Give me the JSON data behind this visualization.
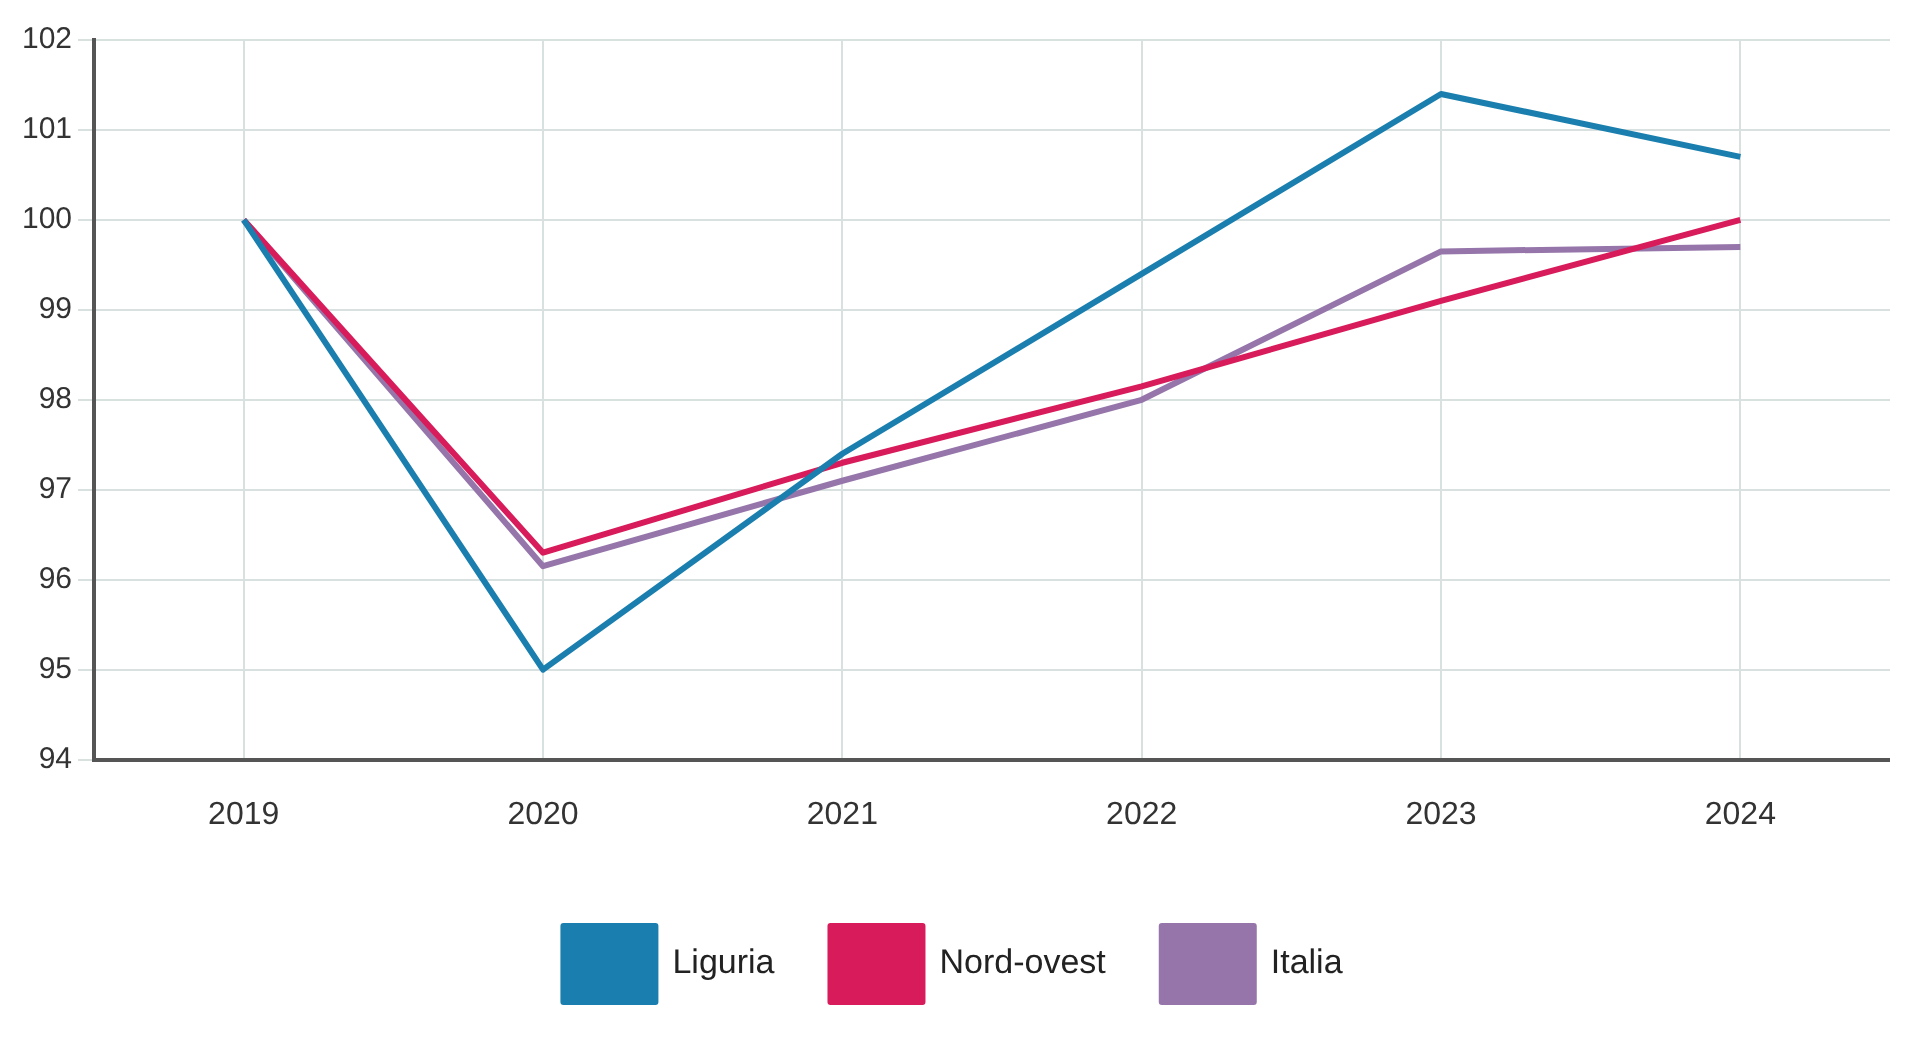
{
  "chart_data": {
    "type": "line",
    "categories": [
      "2019",
      "2020",
      "2021",
      "2022",
      "2023",
      "2024"
    ],
    "series": [
      {
        "name": "Liguria",
        "color": "#1a7fae",
        "values": [
          100,
          95.0,
          97.4,
          99.4,
          101.4,
          100.7
        ]
      },
      {
        "name": "Nord-ovest",
        "color": "#d81b5a",
        "values": [
          100,
          96.3,
          97.3,
          98.15,
          99.1,
          100
        ]
      },
      {
        "name": "Italia",
        "color": "#9575aa",
        "values": [
          100,
          96.15,
          97.1,
          98.0,
          99.65,
          99.7
        ]
      }
    ],
    "ylim": [
      94,
      102
    ],
    "yticks": [
      94,
      95,
      96,
      97,
      98,
      99,
      100,
      101,
      102
    ],
    "grid": true,
    "legend": "bottom",
    "marker": "none",
    "line_style": "solid"
  }
}
